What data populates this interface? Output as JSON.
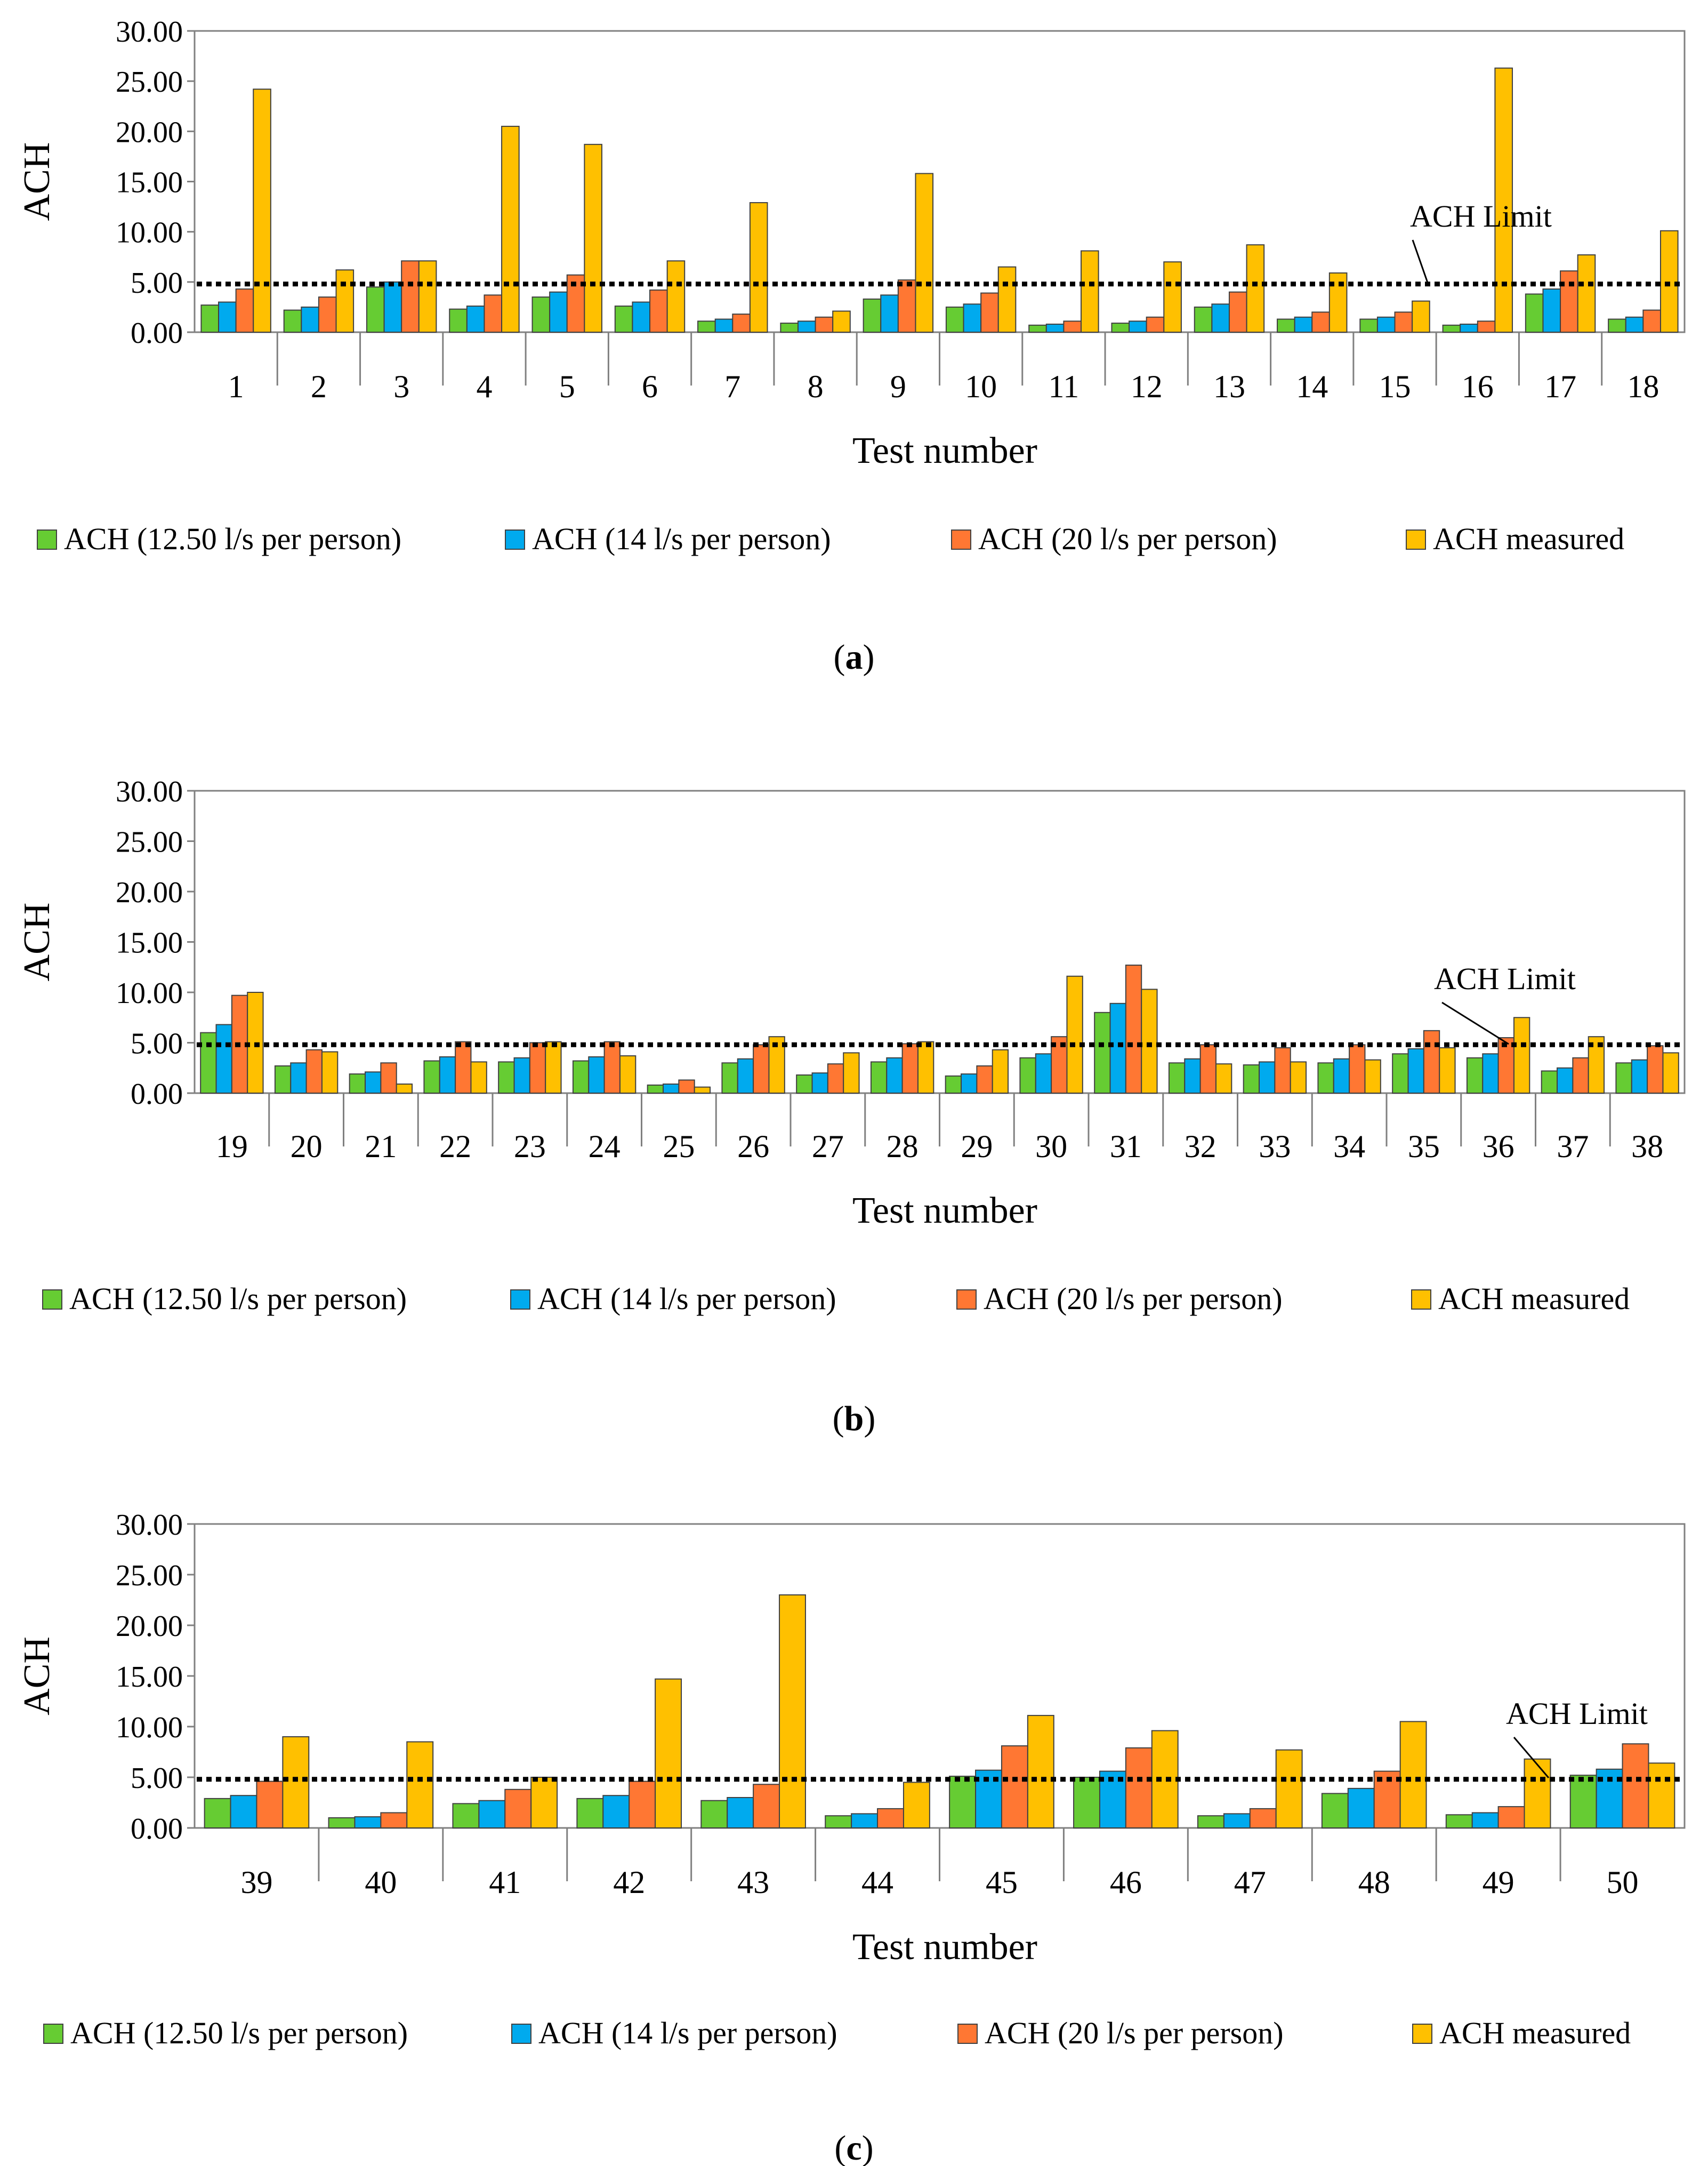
{
  "colors": {
    "series": [
      "#66cc33",
      "#00aaee",
      "#ff7733",
      "#ffc000"
    ],
    "bar_stroke": "#404040",
    "axis": "#808080",
    "limit_line": "#000000"
  },
  "chart_data": [
    {
      "type": "bar",
      "panel": "a",
      "ylabel": "ACH",
      "xlabel": "Test number",
      "ylim": [
        0,
        30
      ],
      "y_ticks": [
        "0.00",
        "5.00",
        "10.00",
        "15.00",
        "20.00",
        "25.00",
        "30.00"
      ],
      "categories": [
        "1",
        "2",
        "3",
        "4",
        "5",
        "6",
        "7",
        "8",
        "9",
        "10",
        "11",
        "12",
        "13",
        "14",
        "15",
        "16",
        "17",
        "18"
      ],
      "series": [
        {
          "name": "ACH (12.50 l/s per person)",
          "values": [
            2.7,
            2.2,
            4.5,
            2.3,
            3.5,
            2.6,
            1.1,
            0.9,
            3.3,
            2.5,
            0.7,
            0.9,
            2.5,
            1.3,
            1.3,
            0.7,
            3.8,
            1.3
          ]
        },
        {
          "name": "ACH (14 l/s per person)",
          "values": [
            3.0,
            2.5,
            5.0,
            2.6,
            4.0,
            3.0,
            1.3,
            1.1,
            3.7,
            2.8,
            0.8,
            1.1,
            2.8,
            1.5,
            1.5,
            0.8,
            4.3,
            1.5
          ]
        },
        {
          "name": "ACH (20 l/s per person)",
          "values": [
            4.3,
            3.5,
            7.1,
            3.7,
            5.7,
            4.2,
            1.8,
            1.5,
            5.2,
            3.9,
            1.1,
            1.5,
            4.0,
            2.0,
            2.0,
            1.1,
            6.1,
            2.2
          ]
        },
        {
          "name": "ACH measured",
          "values": [
            24.2,
            6.2,
            7.1,
            20.5,
            18.7,
            7.1,
            12.9,
            2.1,
            15.8,
            6.5,
            8.1,
            7.0,
            8.7,
            5.9,
            3.1,
            26.3,
            7.7,
            10.1
          ]
        }
      ],
      "limit": {
        "label": "ACH Limit",
        "value": 4.8
      },
      "legend_position": "bottom",
      "caption_letter": "a"
    },
    {
      "type": "bar",
      "panel": "b",
      "ylabel": "ACH",
      "xlabel": "Test number",
      "ylim": [
        0,
        30
      ],
      "y_ticks": [
        "0.00",
        "5.00",
        "10.00",
        "15.00",
        "20.00",
        "25.00",
        "30.00"
      ],
      "categories": [
        "19",
        "20",
        "21",
        "22",
        "23",
        "24",
        "25",
        "26",
        "27",
        "28",
        "29",
        "30",
        "31",
        "32",
        "33",
        "34",
        "35",
        "36",
        "37",
        "38"
      ],
      "series": [
        {
          "name": "ACH (12.50 l/s per person)",
          "values": [
            6.0,
            2.7,
            1.9,
            3.2,
            3.1,
            3.2,
            0.8,
            3.0,
            1.8,
            3.1,
            1.7,
            3.5,
            8.0,
            3.0,
            2.8,
            3.0,
            3.9,
            3.5,
            2.2,
            3.0
          ]
        },
        {
          "name": "ACH (14 l/s per person)",
          "values": [
            6.8,
            3.0,
            2.1,
            3.6,
            3.5,
            3.6,
            0.9,
            3.4,
            2.0,
            3.5,
            1.9,
            3.9,
            8.9,
            3.4,
            3.1,
            3.4,
            4.4,
            3.9,
            2.5,
            3.3
          ]
        },
        {
          "name": "ACH (20 l/s per person)",
          "values": [
            9.7,
            4.3,
            3.0,
            5.1,
            5.0,
            5.1,
            1.3,
            4.8,
            2.9,
            4.9,
            2.7,
            5.6,
            12.7,
            4.8,
            4.5,
            4.8,
            6.2,
            5.5,
            3.5,
            4.7
          ]
        },
        {
          "name": "ACH measured",
          "values": [
            10.0,
            4.1,
            0.9,
            3.1,
            5.1,
            3.7,
            0.6,
            5.6,
            4.0,
            5.1,
            4.3,
            11.6,
            10.3,
            2.9,
            3.1,
            3.3,
            4.5,
            7.5,
            5.6,
            4.0
          ]
        }
      ],
      "limit": {
        "label": "ACH Limit",
        "value": 4.8
      },
      "legend_position": "bottom",
      "caption_letter": "b"
    },
    {
      "type": "bar",
      "panel": "c",
      "ylabel": "ACH",
      "xlabel": "Test number",
      "ylim": [
        0,
        30
      ],
      "y_ticks": [
        "0.00",
        "5.00",
        "10.00",
        "15.00",
        "20.00",
        "25.00",
        "30.00"
      ],
      "categories": [
        "39",
        "40",
        "41",
        "42",
        "43",
        "44",
        "45",
        "46",
        "47",
        "48",
        "49",
        "50"
      ],
      "series": [
        {
          "name": "ACH (12.50 l/s per person)",
          "values": [
            2.9,
            1.0,
            2.4,
            2.9,
            2.7,
            1.2,
            5.1,
            5.0,
            1.2,
            3.4,
            1.3,
            5.2
          ]
        },
        {
          "name": "ACH (14 l/s per person)",
          "values": [
            3.2,
            1.1,
            2.7,
            3.2,
            3.0,
            1.4,
            5.7,
            5.6,
            1.4,
            3.9,
            1.5,
            5.8
          ]
        },
        {
          "name": "ACH (20 l/s per person)",
          "values": [
            4.6,
            1.5,
            3.8,
            4.6,
            4.3,
            1.9,
            8.1,
            7.9,
            1.9,
            5.6,
            2.1,
            8.3
          ]
        },
        {
          "name": "ACH measured",
          "values": [
            9.0,
            8.5,
            5.0,
            14.7,
            23.0,
            4.5,
            11.1,
            9.6,
            7.7,
            10.5,
            6.8,
            6.4
          ]
        }
      ],
      "limit": {
        "label": "ACH Limit",
        "value": 4.8
      },
      "legend_position": "bottom",
      "caption_letter": "c"
    }
  ]
}
